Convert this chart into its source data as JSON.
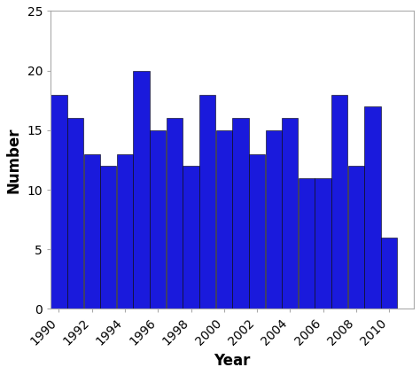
{
  "years": [
    1990,
    1991,
    1992,
    1993,
    1994,
    1995,
    1996,
    1997,
    1998,
    1999,
    2000,
    2001,
    2002,
    2003,
    2004,
    2005,
    2006,
    2007,
    2008,
    2009,
    2010
  ],
  "values": [
    18,
    16,
    13,
    12,
    13,
    20,
    15,
    16,
    12,
    18,
    15,
    16,
    13,
    15,
    16,
    11,
    11,
    18,
    12,
    17,
    6
  ],
  "bar_color": "#1a1adc",
  "bar_edge_color": "#000000",
  "bar_edge_width": 0.4,
  "bar_width": 0.98,
  "xlabel": "Year",
  "ylabel": "Number",
  "xlim": [
    1989.5,
    2011.5
  ],
  "ylim": [
    0,
    25
  ],
  "yticks": [
    0,
    5,
    10,
    15,
    20,
    25
  ],
  "xticks": [
    1990,
    1992,
    1994,
    1996,
    1998,
    2000,
    2002,
    2004,
    2006,
    2008,
    2010
  ],
  "xlabel_fontsize": 12,
  "ylabel_fontsize": 12,
  "tick_fontsize": 10,
  "xlabel_fontweight": "bold",
  "ylabel_fontweight": "bold",
  "background_color": "#ffffff",
  "spine_color": "#aaaaaa"
}
